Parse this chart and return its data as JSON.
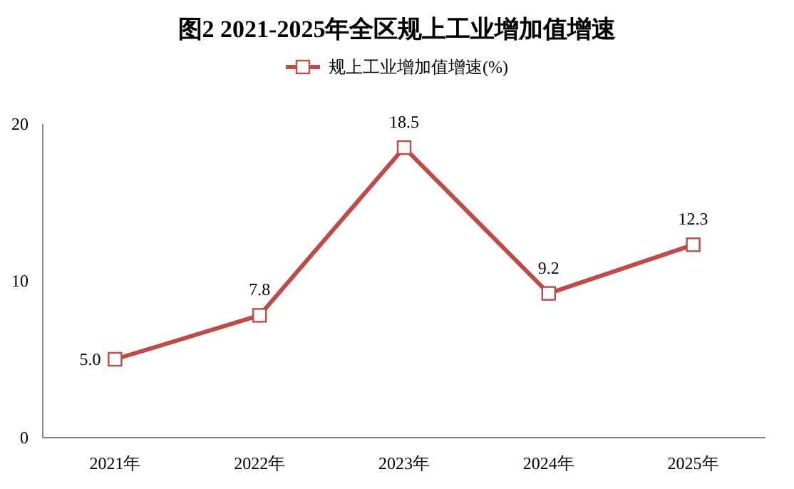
{
  "chart_data": {
    "type": "line",
    "title": "图2  2021-2025年全区规上工业增加值增速",
    "categories": [
      "2021年",
      "2022年",
      "2023年",
      "2024年",
      "2025年"
    ],
    "series": [
      {
        "name": "规上工业增加值增速(%)",
        "color": "#be4b48",
        "values": [
          5.0,
          7.8,
          18.5,
          9.2,
          12.3
        ]
      }
    ],
    "value_labels": [
      "5.0",
      "7.8",
      "18.5",
      "9.2",
      "12.3"
    ],
    "ylim": [
      0,
      20
    ],
    "yticks": [
      0,
      10,
      20
    ],
    "legend": "top",
    "marker": "square",
    "line_style": "solid",
    "grid": false
  }
}
